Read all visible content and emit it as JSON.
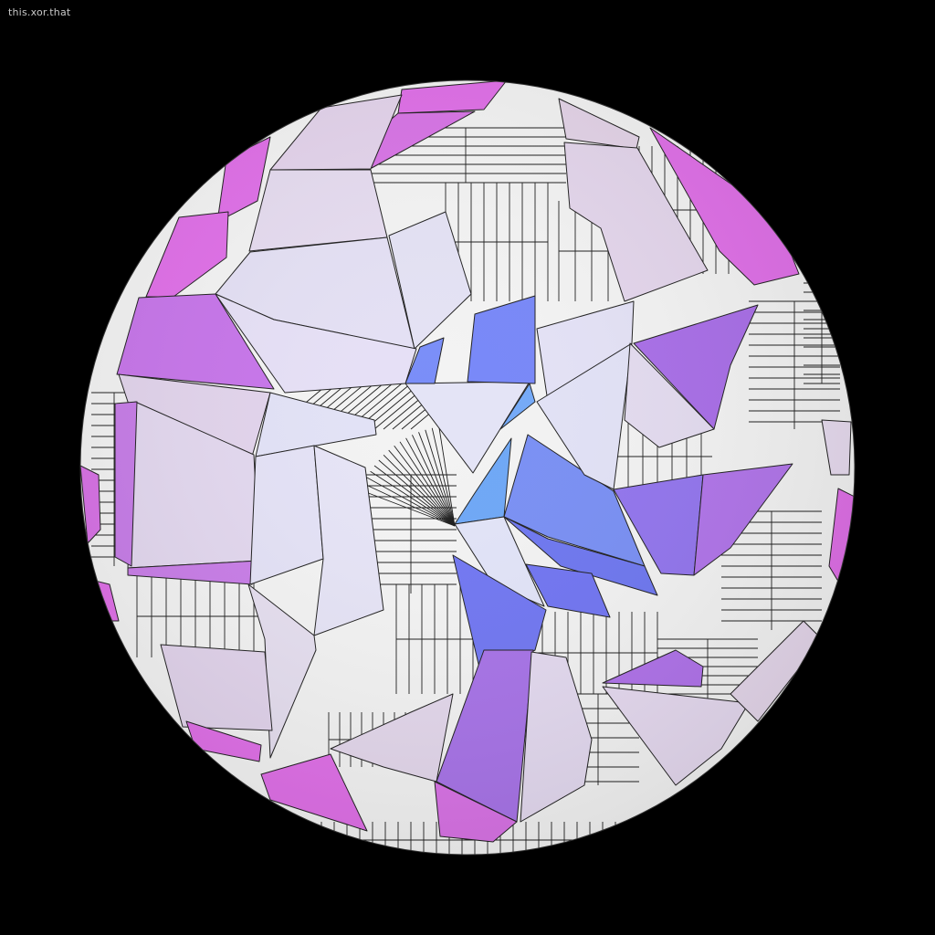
{
  "watermark": "this.xor.that",
  "palette": {
    "magenta": "#e070e8",
    "violet": "#b07ae8",
    "lavender": "#e4daf0",
    "pale": "#e6e4f4",
    "blue": "#7a8cf8",
    "periwinkle": "#6f7ef0",
    "sky": "#78b0f8",
    "background": "#000000",
    "line_shaded": "#f2f2f2"
  }
}
